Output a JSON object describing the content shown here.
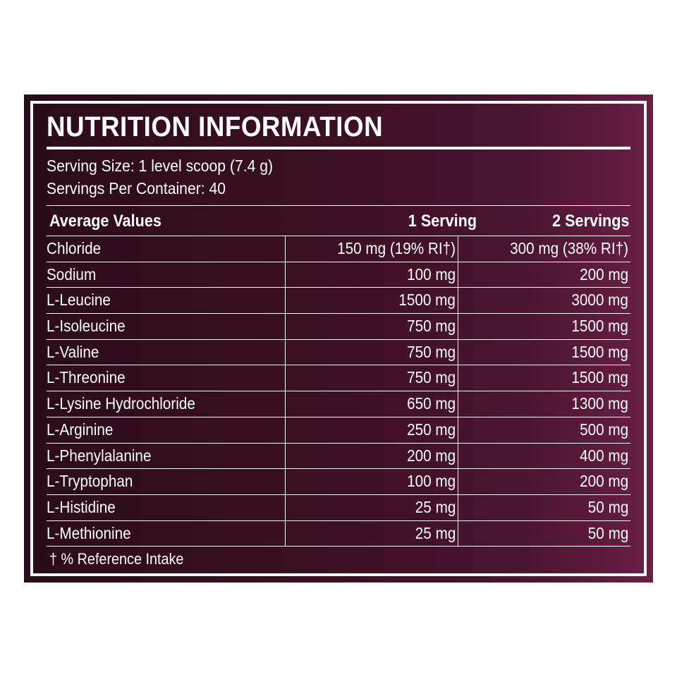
{
  "label": {
    "title": "NUTRITION INFORMATION",
    "serving_size": "Serving Size: 1 level scoop (7.4 g)",
    "servings_per_container": "Servings Per Container: 40",
    "columns": {
      "name": "Average Values",
      "one": "1 Serving",
      "two": "2 Servings"
    },
    "rows": [
      {
        "name": "Chloride",
        "one": "150 mg (19% RI†)",
        "two": "300 mg (38% RI†)"
      },
      {
        "name": "Sodium",
        "one": "100 mg",
        "two": "200 mg"
      },
      {
        "name": "L-Leucine",
        "one": "1500 mg",
        "two": "3000 mg"
      },
      {
        "name": "L-Isoleucine",
        "one": "750 mg",
        "two": "1500 mg"
      },
      {
        "name": "L-Valine",
        "one": "750 mg",
        "two": "1500 mg"
      },
      {
        "name": "L-Threonine",
        "one": "750 mg",
        "two": "1500 mg"
      },
      {
        "name": "L-Lysine Hydrochloride",
        "one": "650 mg",
        "two": "1300 mg"
      },
      {
        "name": "L-Arginine",
        "one": "250 mg",
        "two": "500 mg"
      },
      {
        "name": "L-Phenylalanine",
        "one": "200 mg",
        "two": "400 mg"
      },
      {
        "name": "L-Tryptophan",
        "one": "100 mg",
        "two": "200 mg"
      },
      {
        "name": "L-Histidine",
        "one": "25 mg",
        "two": "50 mg"
      },
      {
        "name": "L-Methionine",
        "one": "25 mg",
        "two": "50 mg"
      }
    ],
    "footnote": "† % Reference Intake"
  },
  "colors": {
    "panel_dark": "#2a0b1a",
    "panel_edge": "#6a1f45",
    "text": "#ffffff",
    "page_background": "#ffffff"
  }
}
